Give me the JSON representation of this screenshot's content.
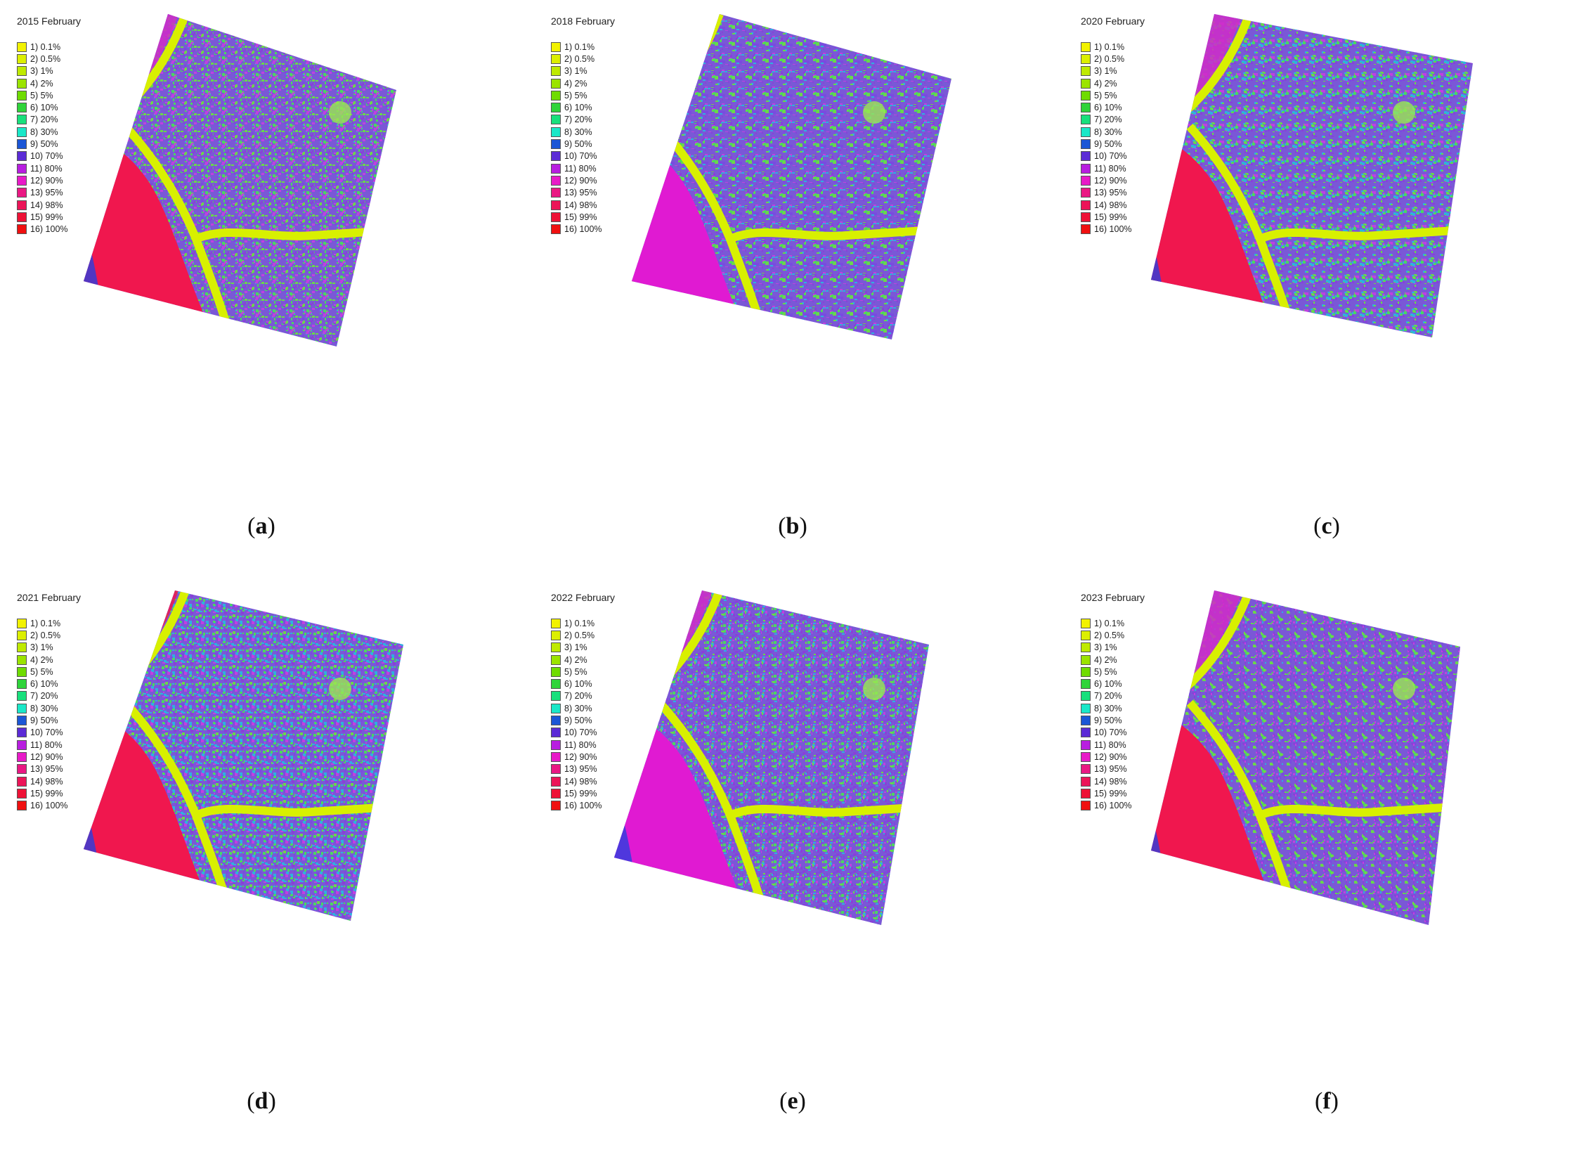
{
  "legend": {
    "items": [
      {
        "label": "1) 0.1%",
        "color": "#f2f200"
      },
      {
        "label": "2) 0.5%",
        "color": "#dcef00"
      },
      {
        "label": "3) 1%",
        "color": "#bfea00"
      },
      {
        "label": "4) 2%",
        "color": "#9be400"
      },
      {
        "label": "5) 5%",
        "color": "#6fdc00"
      },
      {
        "label": "6) 10%",
        "color": "#2fd43a"
      },
      {
        "label": "7) 20%",
        "color": "#18e07c"
      },
      {
        "label": "8) 30%",
        "color": "#1ae8c8"
      },
      {
        "label": "9) 50%",
        "color": "#1b56d6"
      },
      {
        "label": "10) 70%",
        "color": "#5b2bd6"
      },
      {
        "label": "11) 80%",
        "color": "#b81ee0"
      },
      {
        "label": "12) 90%",
        "color": "#e81ac8"
      },
      {
        "label": "13) 95%",
        "color": "#ea1884"
      },
      {
        "label": "14) 98%",
        "color": "#ec1458"
      },
      {
        "label": "15) 99%",
        "color": "#ee1236"
      },
      {
        "label": "16) 100%",
        "color": "#f01010"
      }
    ]
  },
  "panels": [
    {
      "id": "a",
      "title": "2015 February",
      "caption_letter": "a",
      "caption": "(a)",
      "palette_variant": 0
    },
    {
      "id": "b",
      "title": "2018 February",
      "caption_letter": "b",
      "caption": "(b)",
      "palette_variant": 1
    },
    {
      "id": "c",
      "title": "2020 February",
      "caption_letter": "c",
      "caption": "(c)",
      "palette_variant": 2
    },
    {
      "id": "d",
      "title": "2021 February",
      "caption_letter": "d",
      "caption": "(d)",
      "palette_variant": 3
    },
    {
      "id": "e",
      "title": "2022 February",
      "caption_letter": "e",
      "caption": "(e)",
      "palette_variant": 4
    },
    {
      "id": "f",
      "title": "2023 February",
      "caption_letter": "f",
      "caption": "(f)",
      "palette_variant": 5
    }
  ],
  "colors": {
    "sea_red": "#f0174e",
    "sea_magenta": "#e01ad2",
    "sea_blue": "#2a3fe0",
    "land_green": "#6ad84a",
    "land_purple": "#8a3fd8",
    "river_yellow": "#d8f000"
  }
}
